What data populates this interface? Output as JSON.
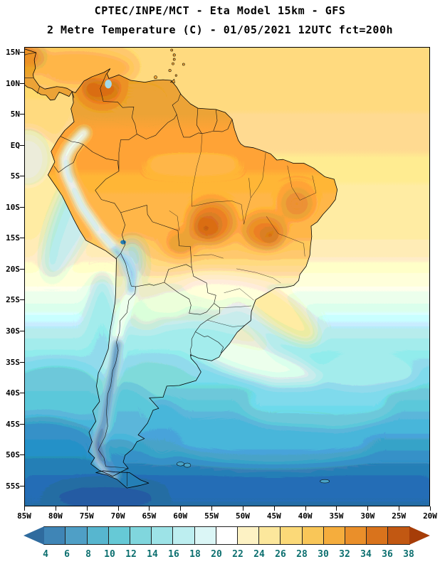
{
  "header": {
    "line1": "CPTEC/INPE/MCT -  Eta Model 15km - GFS",
    "line2": "2 Metre Temperature (C) - 01/05/2021 12UTC fct=200h"
  },
  "axes": {
    "lat_ticks": [
      {
        "label": "15N",
        "deg": 15
      },
      {
        "label": "10N",
        "deg": 10
      },
      {
        "label": "5N",
        "deg": 5
      },
      {
        "label": "EQ",
        "deg": 0
      },
      {
        "label": "5S",
        "deg": -5
      },
      {
        "label": "10S",
        "deg": -10
      },
      {
        "label": "15S",
        "deg": -15
      },
      {
        "label": "20S",
        "deg": -20
      },
      {
        "label": "25S",
        "deg": -25
      },
      {
        "label": "30S",
        "deg": -30
      },
      {
        "label": "35S",
        "deg": -35
      },
      {
        "label": "40S",
        "deg": -40
      },
      {
        "label": "45S",
        "deg": -45
      },
      {
        "label": "50S",
        "deg": -50
      },
      {
        "label": "55S",
        "deg": -55
      }
    ],
    "lon_ticks": [
      {
        "label": "85W",
        "deg": -85
      },
      {
        "label": "80W",
        "deg": -80
      },
      {
        "label": "75W",
        "deg": -75
      },
      {
        "label": "70W",
        "deg": -70
      },
      {
        "label": "65W",
        "deg": -65
      },
      {
        "label": "60W",
        "deg": -60
      },
      {
        "label": "55W",
        "deg": -55
      },
      {
        "label": "50W",
        "deg": -50
      },
      {
        "label": "45W",
        "deg": -45
      },
      {
        "label": "40W",
        "deg": -40
      },
      {
        "label": "35W",
        "deg": -35
      },
      {
        "label": "30W",
        "deg": -30
      },
      {
        "label": "25W",
        "deg": -25
      },
      {
        "label": "20W",
        "deg": -20
      }
    ]
  },
  "colorbar": {
    "tick_labels": [
      "4",
      "6",
      "8",
      "10",
      "12",
      "14",
      "16",
      "18",
      "20",
      "22",
      "24",
      "26",
      "28",
      "30",
      "32",
      "34",
      "36",
      "38"
    ],
    "cells": [
      "#2f6b9e",
      "#3f85b6",
      "#4f9fc6",
      "#57b6cf",
      "#66c9d6",
      "#80d6dd",
      "#9de3e7",
      "#bdeef0",
      "#dbf6f6",
      "#ffffff",
      "#fdf2c4",
      "#fce79c",
      "#fbd978",
      "#f9c658",
      "#f5ad3d",
      "#ea8f2a",
      "#d9731c",
      "#c25812",
      "#a63d08"
    ],
    "label_color": "#0c6f6f"
  }
}
